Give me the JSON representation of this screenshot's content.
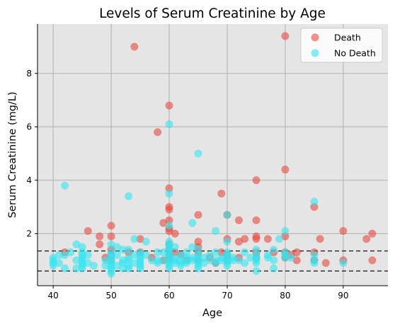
{
  "chart_data": {
    "type": "scatter",
    "title": "Levels of Serum Creatinine by Age",
    "xlabel": "Age",
    "ylabel": "Serum Creatinine (mg/L)",
    "xlim": [
      37.3,
      97.7
    ],
    "ylim": [
      0.05,
      9.85
    ],
    "xticks": [
      40,
      50,
      60,
      70,
      80,
      90
    ],
    "yticks": [
      2,
      4,
      6,
      8
    ],
    "grid": true,
    "legend_position": "top-right",
    "reference_lines": [
      0.6,
      1.35
    ],
    "series": [
      {
        "name": "Death",
        "color": "#e8483f",
        "points": [
          [
            42,
            1.3
          ],
          [
            46,
            2.1
          ],
          [
            48,
            1.9
          ],
          [
            48,
            1.6
          ],
          [
            49,
            1.1
          ],
          [
            50,
            2.3
          ],
          [
            50,
            1.9
          ],
          [
            50,
            1.4
          ],
          [
            50,
            1.2
          ],
          [
            50,
            1.0
          ],
          [
            53,
            1.3
          ],
          [
            54,
            9.0
          ],
          [
            55,
            1.8
          ],
          [
            55,
            1.3
          ],
          [
            57,
            1.1
          ],
          [
            58,
            5.8
          ],
          [
            59,
            2.4
          ],
          [
            59,
            1.0
          ],
          [
            60,
            6.8
          ],
          [
            60,
            3.7
          ],
          [
            60,
            3.0
          ],
          [
            60,
            2.9
          ],
          [
            60,
            2.5
          ],
          [
            60,
            2.2
          ],
          [
            60,
            2.1
          ],
          [
            60,
            1.6
          ],
          [
            60,
            1.4
          ],
          [
            60,
            1.2
          ],
          [
            60,
            1.1
          ],
          [
            60,
            1.0
          ],
          [
            61,
            2.0
          ],
          [
            61,
            1.3
          ],
          [
            62,
            1.2
          ],
          [
            63,
            1.0
          ],
          [
            65,
            2.7
          ],
          [
            65,
            1.7
          ],
          [
            65,
            1.5
          ],
          [
            65,
            1.3
          ],
          [
            65,
            1.0
          ],
          [
            67,
            1.1
          ],
          [
            68,
            0.9
          ],
          [
            69,
            3.5
          ],
          [
            69,
            1.3
          ],
          [
            70,
            2.7
          ],
          [
            70,
            1.8
          ],
          [
            70,
            1.2
          ],
          [
            70,
            1.0
          ],
          [
            72,
            2.5
          ],
          [
            72,
            1.7
          ],
          [
            72,
            1.1
          ],
          [
            73,
            1.8
          ],
          [
            75,
            4.0
          ],
          [
            75,
            2.5
          ],
          [
            75,
            1.9
          ],
          [
            75,
            1.8
          ],
          [
            75,
            1.3
          ],
          [
            75,
            1.1
          ],
          [
            77,
            1.8
          ],
          [
            78,
            1.3
          ],
          [
            80,
            9.4
          ],
          [
            80,
            4.4
          ],
          [
            80,
            1.9
          ],
          [
            80,
            1.3
          ],
          [
            80,
            1.1
          ],
          [
            81,
            1.2
          ],
          [
            82,
            1.3
          ],
          [
            82,
            1.0
          ],
          [
            85,
            3.0
          ],
          [
            85,
            1.3
          ],
          [
            85,
            1.0
          ],
          [
            86,
            1.8
          ],
          [
            87,
            0.9
          ],
          [
            90,
            2.1
          ],
          [
            90,
            1.0
          ],
          [
            94,
            1.8
          ],
          [
            95,
            2.0
          ],
          [
            95,
            1.0
          ]
        ]
      },
      {
        "name": "No Death",
        "color": "#33e4f0",
        "points": [
          [
            40,
            1.1
          ],
          [
            40,
            1.0
          ],
          [
            40,
            0.9
          ],
          [
            40,
            0.8
          ],
          [
            41,
            1.2
          ],
          [
            41,
            0.9
          ],
          [
            42,
            3.8
          ],
          [
            42,
            1.2
          ],
          [
            42,
            0.7
          ],
          [
            43,
            1.3
          ],
          [
            44,
            1.6
          ],
          [
            44,
            1.0
          ],
          [
            44,
            0.7
          ],
          [
            45,
            1.5
          ],
          [
            45,
            1.3
          ],
          [
            45,
            1.2
          ],
          [
            45,
            1.1
          ],
          [
            45,
            1.0
          ],
          [
            45,
            0.9
          ],
          [
            45,
            0.8
          ],
          [
            45,
            0.7
          ],
          [
            46,
            1.2
          ],
          [
            46,
            0.9
          ],
          [
            47,
            0.8
          ],
          [
            49,
            1.0
          ],
          [
            49,
            0.8
          ],
          [
            50,
            1.6
          ],
          [
            50,
            1.3
          ],
          [
            50,
            1.2
          ],
          [
            50,
            1.1
          ],
          [
            50,
            1.0
          ],
          [
            50,
            0.9
          ],
          [
            50,
            0.8
          ],
          [
            50,
            0.7
          ],
          [
            50,
            0.6
          ],
          [
            50,
            0.5
          ],
          [
            51,
            1.5
          ],
          [
            51,
            1.2
          ],
          [
            51,
            0.8
          ],
          [
            52,
            1.4
          ],
          [
            52,
            1.0
          ],
          [
            52,
            0.9
          ],
          [
            52,
            0.7
          ],
          [
            53,
            3.4
          ],
          [
            53,
            1.4
          ],
          [
            53,
            1.1
          ],
          [
            53,
            1.0
          ],
          [
            53,
            0.8
          ],
          [
            53,
            0.7
          ],
          [
            54,
            1.8
          ],
          [
            54,
            1.2
          ],
          [
            54,
            0.9
          ],
          [
            55,
            1.3
          ],
          [
            55,
            1.2
          ],
          [
            55,
            1.1
          ],
          [
            55,
            1.0
          ],
          [
            55,
            0.9
          ],
          [
            55,
            0.8
          ],
          [
            55,
            0.7
          ],
          [
            56,
            1.7
          ],
          [
            56,
            1.2
          ],
          [
            57,
            1.0
          ],
          [
            58,
            1.3
          ],
          [
            58,
            1.0
          ],
          [
            58,
            0.9
          ],
          [
            59,
            1.3
          ],
          [
            59,
            1.0
          ],
          [
            60,
            6.1
          ],
          [
            60,
            3.5
          ],
          [
            60,
            2.3
          ],
          [
            60,
            1.7
          ],
          [
            60,
            1.6
          ],
          [
            60,
            1.5
          ],
          [
            60,
            1.4
          ],
          [
            60,
            1.3
          ],
          [
            60,
            1.2
          ],
          [
            60,
            1.1
          ],
          [
            60,
            1.0
          ],
          [
            60,
            0.9
          ],
          [
            60,
            0.8
          ],
          [
            60,
            0.7
          ],
          [
            61,
            1.5
          ],
          [
            61,
            1.1
          ],
          [
            61,
            1.0
          ],
          [
            61,
            0.9
          ],
          [
            62,
            1.2
          ],
          [
            62,
            1.0
          ],
          [
            62,
            0.9
          ],
          [
            62,
            0.8
          ],
          [
            63,
            1.3
          ],
          [
            63,
            1.1
          ],
          [
            63,
            1.0
          ],
          [
            63,
            0.9
          ],
          [
            64,
            2.4
          ],
          [
            64,
            1.5
          ],
          [
            64,
            1.1
          ],
          [
            64,
            1.0
          ],
          [
            65,
            5.0
          ],
          [
            65,
            1.4
          ],
          [
            65,
            1.2
          ],
          [
            65,
            1.1
          ],
          [
            65,
            1.0
          ],
          [
            65,
            0.9
          ],
          [
            65,
            0.8
          ],
          [
            65,
            0.7
          ],
          [
            66,
            1.1
          ],
          [
            66,
            0.9
          ],
          [
            67,
            1.2
          ],
          [
            67,
            1.0
          ],
          [
            68,
            2.1
          ],
          [
            68,
            1.3
          ],
          [
            68,
            1.0
          ],
          [
            68,
            0.9
          ],
          [
            69,
            1.1
          ],
          [
            69,
            1.0
          ],
          [
            70,
            2.7
          ],
          [
            70,
            1.7
          ],
          [
            70,
            1.3
          ],
          [
            70,
            1.2
          ],
          [
            70,
            1.1
          ],
          [
            70,
            1.0
          ],
          [
            70,
            0.9
          ],
          [
            70,
            0.8
          ],
          [
            71,
            1.1
          ],
          [
            71,
            1.0
          ],
          [
            72,
            1.0
          ],
          [
            73,
            1.3
          ],
          [
            73,
            0.9
          ],
          [
            74,
            1.1
          ],
          [
            75,
            1.4
          ],
          [
            75,
            1.2
          ],
          [
            75,
            1.1
          ],
          [
            75,
            1.0
          ],
          [
            75,
            0.9
          ],
          [
            75,
            0.6
          ],
          [
            77,
            1.2
          ],
          [
            77,
            1.1
          ],
          [
            78,
            1.4
          ],
          [
            78,
            1.0
          ],
          [
            78,
            0.7
          ],
          [
            79,
            1.8
          ],
          [
            80,
            2.1
          ],
          [
            80,
            1.3
          ],
          [
            80,
            1.2
          ],
          [
            80,
            1.1
          ],
          [
            81,
            1.1
          ],
          [
            85,
            3.2
          ],
          [
            85,
            1.2
          ],
          [
            85,
            1.0
          ],
          [
            85,
            0.9
          ],
          [
            90,
            0.9
          ]
        ]
      }
    ]
  }
}
